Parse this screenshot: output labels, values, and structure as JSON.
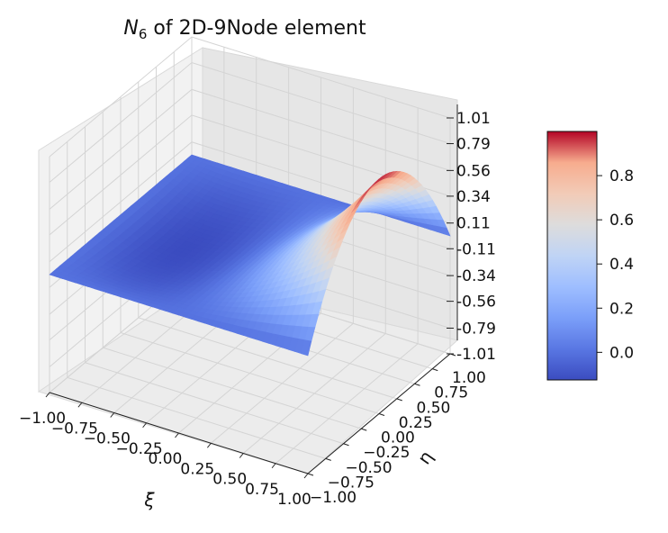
{
  "chart_data": {
    "type": "surface3d",
    "title_main": "N",
    "title_sub": "6",
    "title_rest": " of 2D-9Node element",
    "function": "N6 = 0.5*(1 + xi)*(1 - eta^2)*xi",
    "xlabel": "ξ",
    "ylabel": "η",
    "zlabel": "",
    "xlim": [
      -1.0,
      1.0
    ],
    "ylim": [
      -1.0,
      1.0
    ],
    "zlim": [
      -1.01,
      1.01
    ],
    "x_ticks": [
      "−1.00",
      "−0.75",
      "−0.50",
      "−0.25",
      "0.00",
      "0.25",
      "0.50",
      "0.75",
      "1.00"
    ],
    "y_ticks": [
      "−1.00",
      "−0.75",
      "−0.50",
      "−0.25",
      "0.00",
      "0.25",
      "0.50",
      "0.75",
      "1.00"
    ],
    "z_ticks": [
      "-1.01",
      "-0.79",
      "-0.56",
      "-0.34",
      "-0.11",
      "0.11",
      "0.34",
      "0.56",
      "0.79",
      "1.01"
    ],
    "x_tick_values": [
      -1.0,
      -0.75,
      -0.5,
      -0.25,
      0.0,
      0.25,
      0.5,
      0.75,
      1.0
    ],
    "y_tick_values": [
      -1.0,
      -0.75,
      -0.5,
      -0.25,
      0.0,
      0.25,
      0.5,
      0.75,
      1.0
    ],
    "z_tick_values": [
      -1.01,
      -0.79,
      -0.56,
      -0.34,
      -0.11,
      0.11,
      0.34,
      0.56,
      0.79,
      1.01
    ],
    "grid": true,
    "colormap": "coolwarm",
    "colorbar": {
      "range": [
        -0.125,
        1.0
      ],
      "ticks": [
        "0.0",
        "0.2",
        "0.4",
        "0.6",
        "0.8"
      ],
      "tick_values": [
        0.0,
        0.2,
        0.4,
        0.6,
        0.8
      ],
      "placement": "right"
    },
    "grid_resolution": 40
  }
}
